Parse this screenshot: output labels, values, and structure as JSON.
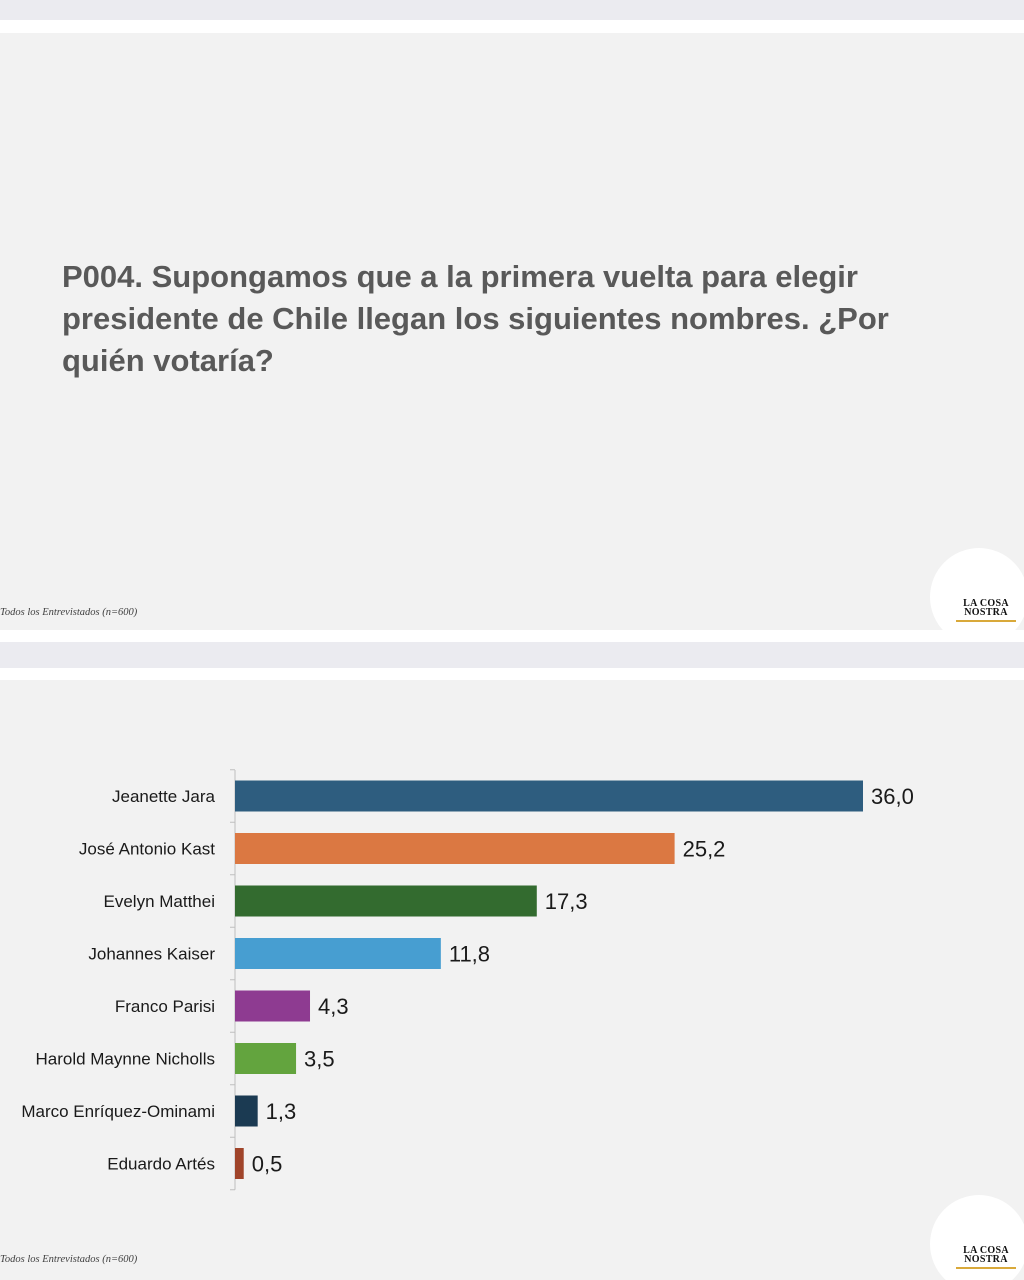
{
  "slide1": {
    "question": "P004. Supongamos que a la primera vuelta para elegir presidente de Chile llegan los siguientes nombres. ¿Por quién votaría?",
    "footnote": "Todos los Entrevistados (n=600)",
    "logo": "LA COSA NOSTRA"
  },
  "slide2": {
    "footnote": "Todos los Entrevistados (n=600)",
    "logo": "LA COSA NOSTRA"
  },
  "chart_data": {
    "type": "bar",
    "orientation": "horizontal",
    "categories": [
      "Jeanette Jara",
      "José Antonio Kast",
      "Evelyn Matthei",
      "Johannes Kaiser",
      "Franco Parisi",
      "Harold Maynne Nicholls",
      "Marco Enríquez-Ominami",
      "Eduardo Artés"
    ],
    "values": [
      36.0,
      25.2,
      17.3,
      11.8,
      4.3,
      3.5,
      1.3,
      0.5
    ],
    "value_labels": [
      "36,0",
      "25,2",
      "17,3",
      "11,8",
      "4,3",
      "3,5",
      "1,3",
      "0,5"
    ],
    "colors": [
      "#2e5d7f",
      "#db7842",
      "#336b2f",
      "#479ed1",
      "#8e3b91",
      "#63a43e",
      "#1b3a52",
      "#a0442a"
    ],
    "xlim": [
      0,
      36
    ],
    "grid": false,
    "legend": "none"
  }
}
